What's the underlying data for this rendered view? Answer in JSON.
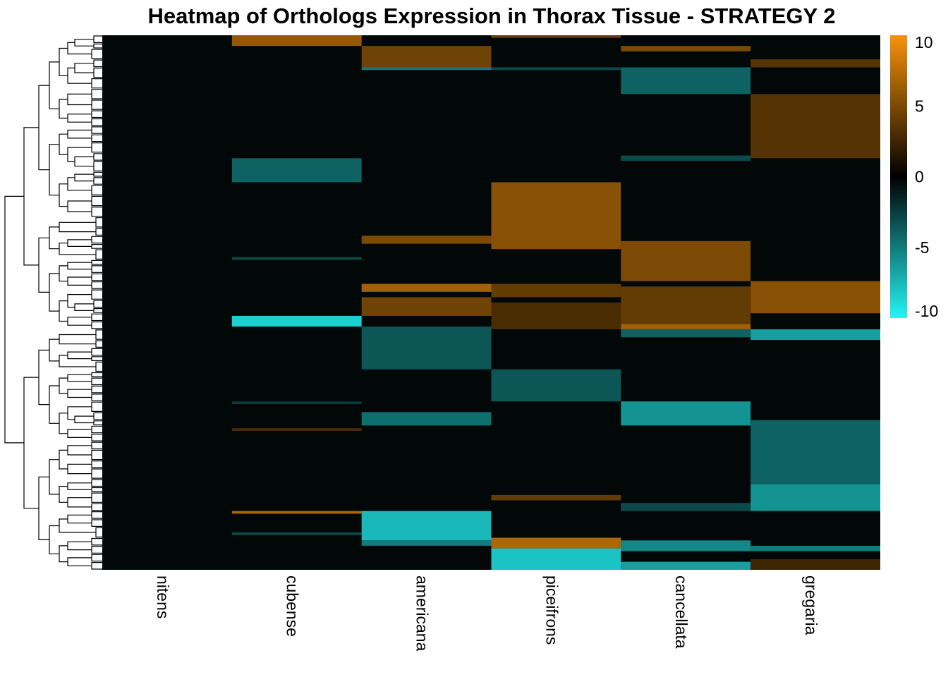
{
  "chart_data": {
    "type": "heatmap",
    "title": "Heatmap of Orthologs Expression in Thorax Tissue - STRATEGY 2",
    "columns": [
      "nitens",
      "cubense",
      "americana",
      "piceifrons",
      "cancellata",
      "gregaria"
    ],
    "row_dendrogram": true,
    "value_range": [
      -10,
      10
    ],
    "colorbar": {
      "ticks": [
        10,
        5,
        0,
        -5,
        -10
      ],
      "tick_labels": [
        "10",
        "5",
        "0",
        "-5",
        "-10"
      ],
      "low_color": "#22f5f5",
      "mid_color": "#000000",
      "high_color": "#f7930a"
    },
    "row_count": 200,
    "row_blocks": [
      {
        "column": "cubense",
        "start": 0,
        "end": 4,
        "value": 6.0
      },
      {
        "column": "cubense",
        "start": 46,
        "end": 55,
        "value": -4.0
      },
      {
        "column": "cubense",
        "start": 83,
        "end": 84,
        "value": -3.0
      },
      {
        "column": "cubense",
        "start": 105,
        "end": 109,
        "value": -8.5
      },
      {
        "column": "cubense",
        "start": 137,
        "end": 138,
        "value": -2.5
      },
      {
        "column": "cubense",
        "start": 147,
        "end": 148,
        "value": 3.0
      },
      {
        "column": "cubense",
        "start": 178,
        "end": 179,
        "value": 7.0
      },
      {
        "column": "cubense",
        "start": 186,
        "end": 187,
        "value": -3.0
      },
      {
        "column": "americana",
        "start": 4,
        "end": 12,
        "value": 4.5
      },
      {
        "column": "americana",
        "start": 12,
        "end": 13,
        "value": -5.0
      },
      {
        "column": "americana",
        "start": 75,
        "end": 78,
        "value": 5.0
      },
      {
        "column": "americana",
        "start": 93,
        "end": 96,
        "value": 6.5
      },
      {
        "column": "americana",
        "start": 98,
        "end": 105,
        "value": 4.5
      },
      {
        "column": "americana",
        "start": 109,
        "end": 125,
        "value": -3.5
      },
      {
        "column": "americana",
        "start": 141,
        "end": 146,
        "value": -4.5
      },
      {
        "column": "americana",
        "start": 178,
        "end": 189,
        "value": -7.5
      },
      {
        "column": "americana",
        "start": 189,
        "end": 191,
        "value": -5.0
      },
      {
        "column": "piceifrons",
        "start": 0,
        "end": 1,
        "value": 4.0
      },
      {
        "column": "piceifrons",
        "start": 12,
        "end": 13,
        "value": -3.0
      },
      {
        "column": "piceifrons",
        "start": 55,
        "end": 80,
        "value": 5.5
      },
      {
        "column": "piceifrons",
        "start": 93,
        "end": 98,
        "value": 4.0
      },
      {
        "column": "piceifrons",
        "start": 100,
        "end": 110,
        "value": 3.0
      },
      {
        "column": "piceifrons",
        "start": 125,
        "end": 137,
        "value": -3.5
      },
      {
        "column": "piceifrons",
        "start": 172,
        "end": 174,
        "value": 4.0
      },
      {
        "column": "piceifrons",
        "start": 188,
        "end": 192,
        "value": 7.0
      },
      {
        "column": "piceifrons",
        "start": 192,
        "end": 200,
        "value": -8.0
      },
      {
        "column": "cancellata",
        "start": 4,
        "end": 6,
        "value": 5.0
      },
      {
        "column": "cancellata",
        "start": 12,
        "end": 22,
        "value": -4.0
      },
      {
        "column": "cancellata",
        "start": 45,
        "end": 47,
        "value": -3.0
      },
      {
        "column": "cancellata",
        "start": 77,
        "end": 92,
        "value": 5.0
      },
      {
        "column": "cancellata",
        "start": 94,
        "end": 108,
        "value": 4.0
      },
      {
        "column": "cancellata",
        "start": 108,
        "end": 110,
        "value": 6.5
      },
      {
        "column": "cancellata",
        "start": 110,
        "end": 113,
        "value": -4.0
      },
      {
        "column": "cancellata",
        "start": 137,
        "end": 146,
        "value": -6.0
      },
      {
        "column": "cancellata",
        "start": 175,
        "end": 178,
        "value": -3.0
      },
      {
        "column": "cancellata",
        "start": 189,
        "end": 193,
        "value": -5.5
      },
      {
        "column": "cancellata",
        "start": 197,
        "end": 200,
        "value": -6.5
      },
      {
        "column": "gregaria",
        "start": 9,
        "end": 12,
        "value": 3.5
      },
      {
        "column": "gregaria",
        "start": 22,
        "end": 46,
        "value": 3.5
      },
      {
        "column": "gregaria",
        "start": 92,
        "end": 104,
        "value": 5.5
      },
      {
        "column": "gregaria",
        "start": 110,
        "end": 114,
        "value": -6.5
      },
      {
        "column": "gregaria",
        "start": 144,
        "end": 168,
        "value": -4.0
      },
      {
        "column": "gregaria",
        "start": 168,
        "end": 178,
        "value": -6.0
      },
      {
        "column": "gregaria",
        "start": 191,
        "end": 193,
        "value": -5.0
      },
      {
        "column": "gregaria",
        "start": 196,
        "end": 200,
        "value": 2.5
      }
    ]
  }
}
